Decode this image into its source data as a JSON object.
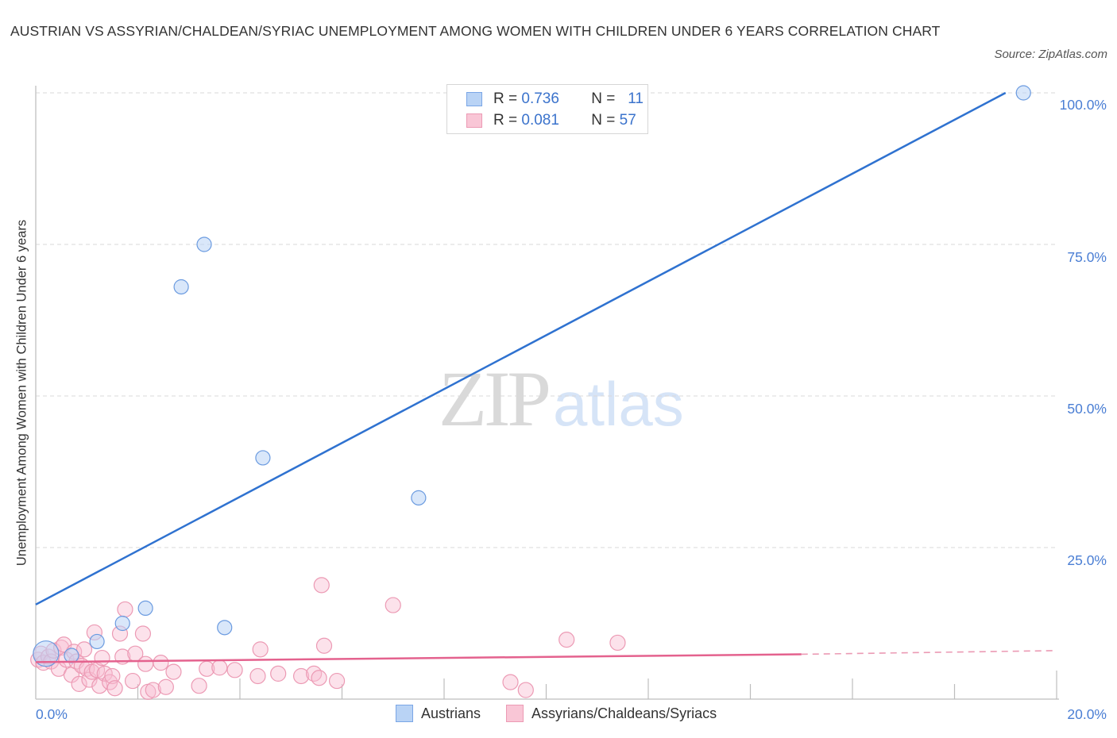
{
  "header": {
    "title": "AUSTRIAN VS ASSYRIAN/CHALDEAN/SYRIAC UNEMPLOYMENT AMONG WOMEN WITH CHILDREN UNDER 6 YEARS CORRELATION CHART",
    "source": "Source: ZipAtlas.com"
  },
  "watermark": {
    "zip": "ZIP",
    "atlas": "atlas"
  },
  "legend_box": {
    "rows": [
      {
        "r_label": "R =",
        "r_value": "0.736",
        "n_label": "N =",
        "n_value": "11",
        "color": "#b9d3f5",
        "border": "#7aa6e6"
      },
      {
        "r_label": "R =",
        "r_value": "0.081",
        "n_label": "N =",
        "n_value": "57",
        "color": "#f9c6d6",
        "border": "#ec9ab4"
      }
    ]
  },
  "bottom_legend": {
    "items": [
      {
        "label": "Austrians",
        "color": "#b9d3f5",
        "border": "#7aa6e6"
      },
      {
        "label": "Assyrians/Chaldeans/Syriacs",
        "color": "#f9c6d6",
        "border": "#ec9ab4"
      }
    ]
  },
  "axes": {
    "ylabel": "Unemployment Among Women with Children Under 6 years",
    "y_ticks": [
      "100.0%",
      "75.0%",
      "50.0%",
      "25.0%"
    ],
    "x_ticks": [
      "0.0%",
      "20.0%"
    ]
  },
  "chart_data": {
    "type": "scatter",
    "title": "AUSTRIAN VS ASSYRIAN/CHALDEAN/SYRIAC UNEMPLOYMENT AMONG WOMEN WITH CHILDREN UNDER 6 YEARS CORRELATION CHART",
    "xlabel": "",
    "ylabel": "Unemployment Among Women with Children Under 6 years",
    "xlim": [
      0,
      20
    ],
    "ylim": [
      0,
      100
    ],
    "x_tick_labels": [
      "0.0%",
      "20.0%"
    ],
    "y_tick_labels": [
      "25.0%",
      "50.0%",
      "75.0%",
      "100.0%"
    ],
    "grid": true,
    "legend_position": "bottom",
    "series": [
      {
        "name": "Austrians",
        "color": "#4a86dc",
        "R": 0.736,
        "N": 11,
        "points": [
          {
            "x": 0.2,
            "y": 7.5,
            "size": "large"
          },
          {
            "x": 0.7,
            "y": 7.2
          },
          {
            "x": 1.2,
            "y": 9.5
          },
          {
            "x": 1.7,
            "y": 12.5
          },
          {
            "x": 2.15,
            "y": 15.0
          },
          {
            "x": 2.85,
            "y": 68.0
          },
          {
            "x": 3.3,
            "y": 75.0
          },
          {
            "x": 3.7,
            "y": 11.8
          },
          {
            "x": 4.45,
            "y": 39.8
          },
          {
            "x": 7.5,
            "y": 33.2
          },
          {
            "x": 19.35,
            "y": 100.0
          }
        ],
        "trendline": {
          "x0": 0,
          "y0": 15.6,
          "x1": 19.0,
          "y1": 100.0,
          "style": "solid"
        }
      },
      {
        "name": "Assyrians/Chaldeans/Syriacs",
        "color": "#e8739a",
        "R": 0.081,
        "N": 57,
        "points": [
          {
            "x": 0.05,
            "y": 6.5
          },
          {
            "x": 0.1,
            "y": 7.5
          },
          {
            "x": 0.15,
            "y": 6.0
          },
          {
            "x": 0.25,
            "y": 7.0
          },
          {
            "x": 0.3,
            "y": 6.2
          },
          {
            "x": 0.35,
            "y": 8.0
          },
          {
            "x": 0.45,
            "y": 5.0
          },
          {
            "x": 0.5,
            "y": 8.5
          },
          {
            "x": 0.55,
            "y": 9.0
          },
          {
            "x": 0.6,
            "y": 6.5
          },
          {
            "x": 0.7,
            "y": 4.0
          },
          {
            "x": 0.75,
            "y": 7.8
          },
          {
            "x": 0.8,
            "y": 6.2
          },
          {
            "x": 0.85,
            "y": 2.5
          },
          {
            "x": 0.9,
            "y": 5.5
          },
          {
            "x": 0.95,
            "y": 8.2
          },
          {
            "x": 1.0,
            "y": 5.0
          },
          {
            "x": 1.05,
            "y": 3.2
          },
          {
            "x": 1.1,
            "y": 4.5
          },
          {
            "x": 1.15,
            "y": 11.0
          },
          {
            "x": 1.2,
            "y": 4.8
          },
          {
            "x": 1.25,
            "y": 2.2
          },
          {
            "x": 1.3,
            "y": 6.8
          },
          {
            "x": 1.35,
            "y": 4.2
          },
          {
            "x": 1.45,
            "y": 2.8
          },
          {
            "x": 1.5,
            "y": 3.8
          },
          {
            "x": 1.55,
            "y": 1.8
          },
          {
            "x": 1.65,
            "y": 10.8
          },
          {
            "x": 1.7,
            "y": 7.0
          },
          {
            "x": 1.75,
            "y": 14.8
          },
          {
            "x": 1.9,
            "y": 3.0
          },
          {
            "x": 1.95,
            "y": 7.5
          },
          {
            "x": 2.1,
            "y": 10.8
          },
          {
            "x": 2.15,
            "y": 5.8
          },
          {
            "x": 2.2,
            "y": 1.2
          },
          {
            "x": 2.3,
            "y": 1.5
          },
          {
            "x": 2.45,
            "y": 6.0
          },
          {
            "x": 2.55,
            "y": 2.0
          },
          {
            "x": 2.7,
            "y": 4.5
          },
          {
            "x": 3.2,
            "y": 2.2
          },
          {
            "x": 3.35,
            "y": 5.0
          },
          {
            "x": 3.6,
            "y": 5.2
          },
          {
            "x": 3.9,
            "y": 4.8
          },
          {
            "x": 4.35,
            "y": 3.8
          },
          {
            "x": 4.4,
            "y": 8.2
          },
          {
            "x": 4.75,
            "y": 4.2
          },
          {
            "x": 5.2,
            "y": 3.8
          },
          {
            "x": 5.45,
            "y": 4.2
          },
          {
            "x": 5.55,
            "y": 3.5
          },
          {
            "x": 5.6,
            "y": 18.8
          },
          {
            "x": 5.65,
            "y": 8.8
          },
          {
            "x": 5.9,
            "y": 3.0
          },
          {
            "x": 7.0,
            "y": 15.5
          },
          {
            "x": 9.3,
            "y": 2.8
          },
          {
            "x": 9.6,
            "y": 1.5
          },
          {
            "x": 10.4,
            "y": 9.8
          },
          {
            "x": 11.4,
            "y": 9.3
          }
        ],
        "trendline": {
          "x0": 0,
          "y0": 6.1,
          "x1": 15.0,
          "y1": 7.4,
          "dashed_to_x": 20.0,
          "dashed_to_y": 8.0,
          "style": "solid then dashed"
        }
      }
    ]
  }
}
